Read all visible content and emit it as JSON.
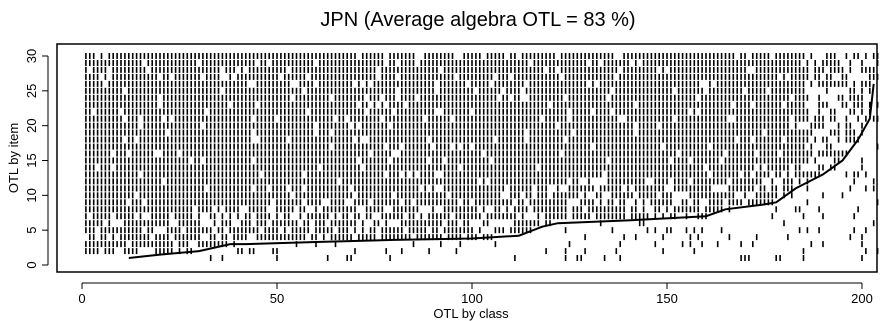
{
  "chart_data": {
    "type": "scatter",
    "title": "JPN  (Average algebra OTL =  83 %)",
    "xlabel": "OTL by class",
    "ylabel": "OTL by item",
    "xlim": [
      0,
      204
    ],
    "ylim": [
      0,
      31
    ],
    "x_ticks": [
      0,
      50,
      100,
      150,
      200
    ],
    "y_ticks": [
      0,
      5,
      10,
      15,
      20,
      25,
      30
    ],
    "n_classes": 204,
    "n_items": 30,
    "curve": {
      "x": [
        12,
        20,
        30,
        38,
        42,
        60,
        80,
        100,
        112,
        118,
        122,
        140,
        160,
        165,
        175,
        178,
        183,
        190,
        195,
        199,
        202,
        203
      ],
      "y": [
        1,
        1.5,
        2,
        3,
        3,
        3.3,
        3.6,
        3.8,
        4.2,
        5.5,
        6,
        6.4,
        7,
        8,
        8.7,
        9,
        11,
        13,
        15,
        18,
        21,
        26
      ]
    },
    "marks": "tick per class (1–204) and item (1–30) where OTL present; density increases with class index"
  }
}
